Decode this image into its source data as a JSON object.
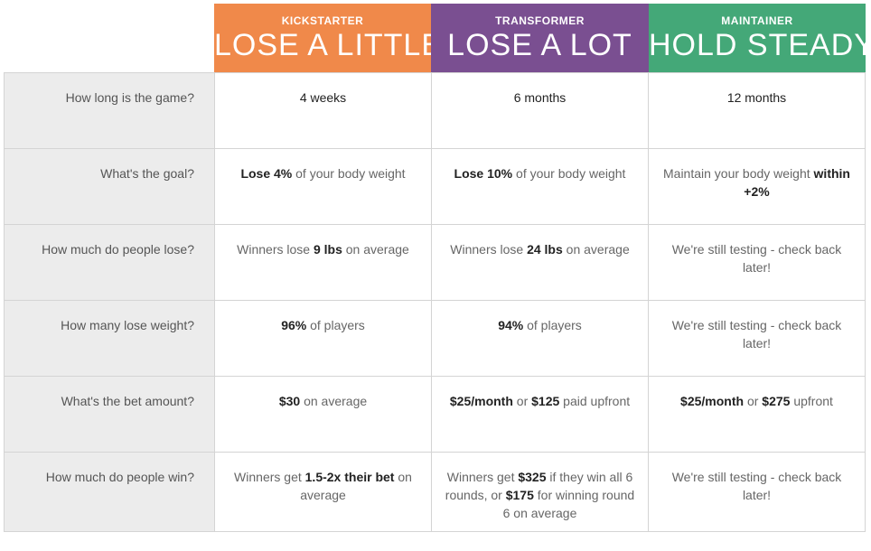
{
  "columns": [
    {
      "kicker": "KICKSTARTER",
      "title": "LOSE A LITTLE",
      "color": "#f0894a"
    },
    {
      "kicker": "TRANSFORMER",
      "title": "LOSE A LOT",
      "color": "#7a4f91"
    },
    {
      "kicker": "MAINTAINER",
      "title": "HOLD STEADY",
      "color": "#44a878"
    }
  ],
  "rows": [
    {
      "question": "How long is the game?",
      "answers": [
        [
          {
            "t": "4 weeks",
            "c": "plain"
          }
        ],
        [
          {
            "t": "6 months",
            "c": "plain"
          }
        ],
        [
          {
            "t": "12 months",
            "c": "plain"
          }
        ]
      ]
    },
    {
      "question": "What's the goal?",
      "answers": [
        [
          {
            "t": "Lose 4%",
            "c": "b"
          },
          {
            "t": " of your body weight",
            "c": ""
          }
        ],
        [
          {
            "t": "Lose 10%",
            "c": "b"
          },
          {
            "t": " of your body weight",
            "c": ""
          }
        ],
        [
          {
            "t": "Maintain your body weight ",
            "c": ""
          },
          {
            "t": "within +2%",
            "c": "b"
          }
        ]
      ]
    },
    {
      "question": "How much do people lose?",
      "answers": [
        [
          {
            "t": "Winners lose ",
            "c": ""
          },
          {
            "t": "9 lbs",
            "c": "b"
          },
          {
            "t": " on average",
            "c": ""
          }
        ],
        [
          {
            "t": "Winners lose ",
            "c": ""
          },
          {
            "t": "24 lbs",
            "c": "b"
          },
          {
            "t": " on average",
            "c": ""
          }
        ],
        [
          {
            "t": "We're still testing - check back later!",
            "c": ""
          }
        ]
      ]
    },
    {
      "question": "How many lose weight?",
      "answers": [
        [
          {
            "t": "96%",
            "c": "b"
          },
          {
            "t": " of players",
            "c": ""
          }
        ],
        [
          {
            "t": "94%",
            "c": "b"
          },
          {
            "t": " of players",
            "c": ""
          }
        ],
        [
          {
            "t": "We're still testing - check back later!",
            "c": ""
          }
        ]
      ]
    },
    {
      "question": "What's the bet amount?",
      "answers": [
        [
          {
            "t": "$30",
            "c": "b"
          },
          {
            "t": " on average",
            "c": ""
          }
        ],
        [
          {
            "t": "$25/month",
            "c": "b"
          },
          {
            "t": " or ",
            "c": ""
          },
          {
            "t": "$125",
            "c": "b"
          },
          {
            "t": " paid upfront",
            "c": ""
          }
        ],
        [
          {
            "t": "$25/month",
            "c": "b"
          },
          {
            "t": " or ",
            "c": ""
          },
          {
            "t": "$275",
            "c": "b"
          },
          {
            "t": " upfront",
            "c": ""
          }
        ]
      ]
    },
    {
      "question": "How much do people win?",
      "answers": [
        [
          {
            "t": "Winners get ",
            "c": ""
          },
          {
            "t": "1.5-2x their bet",
            "c": "b"
          },
          {
            "t": " on average",
            "c": ""
          }
        ],
        [
          {
            "t": "Winners get ",
            "c": ""
          },
          {
            "t": "$325",
            "c": "b"
          },
          {
            "t": " if they win all 6 rounds, or ",
            "c": ""
          },
          {
            "t": "$175",
            "c": "b"
          },
          {
            "t": " for winning round 6 on average",
            "c": ""
          }
        ],
        [
          {
            "t": "We're still testing - check back later!",
            "c": ""
          }
        ]
      ]
    }
  ]
}
